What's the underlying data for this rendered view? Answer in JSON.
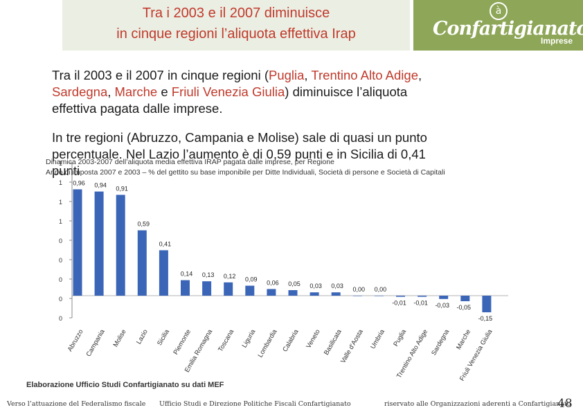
{
  "header": {
    "title_line1": "Tra i 2003 e il 2007 diminuisce",
    "title_line2": "in cinque regioni l’aliquota effettiva Irap",
    "logo_mark": "à",
    "logo_name": "Confartigianato",
    "logo_sub": "Imprese"
  },
  "body": {
    "p1_part1": "Tra il 2003 e il 2007 in cinque regioni (",
    "p1_r1": "Puglia",
    "p1_sep1": ", ",
    "p1_r2": "Trentino Alto Adige",
    "p1_sep2": ",",
    "p1_r3": "Sardegna",
    "p1_sep3": ", ",
    "p1_r4": "Marche",
    "p1_sep4": " e ",
    "p1_r5": "Friuli Venezia Giulia",
    "p1_part2": ") diminuisce l’aliquota",
    "p1_line3": "effettiva pagata dalle imprese.",
    "p2_line1": "In tre regioni (Abruzzo, Campania e Molise) sale di quasi un punto",
    "p2_line2": "percentuale. Nel Lazio l’aumento è di 0,59 punti e in Sicilia di 0,41",
    "p2_line3": "punti"
  },
  "chart_titles": {
    "title": "Dinamica 2003-2007 dell’aliquota media effettiva IRAP pagata dalle imprese, per Regione",
    "subtitle": "Anno di imposta 2007 e 2003 – % del gettito su base imponibile per Ditte Individuali, Società di persone e Società di Capitali"
  },
  "chart_data": {
    "type": "bar",
    "title": "Dinamica 2003-2007 dell’aliquota media effettiva IRAP pagata dalle imprese, per Regione",
    "subtitle": "Anno di imposta 2007 e 2003 – % del gettito su base imponibile per Ditte Individuali, Società di persone e Società di Capitali",
    "categories": [
      "Abruzzo",
      "Campania",
      "Molise",
      "Lazio",
      "Sicilia",
      "Piemonte",
      "Emilia Romagna",
      "Toscana",
      "Liguria",
      "Lombardia",
      "Calabria",
      "Veneto",
      "Basilicata",
      "Valle d'Aosta",
      "Umbria",
      "Puglia",
      "Trentino Alto Adige",
      "Sardegna",
      "Marche",
      "Friuli Venezia Giulia"
    ],
    "values": [
      0.96,
      0.94,
      0.91,
      0.59,
      0.41,
      0.14,
      0.13,
      0.12,
      0.09,
      0.06,
      0.05,
      0.03,
      0.03,
      0.0,
      0.0,
      -0.01,
      -0.01,
      -0.03,
      -0.05,
      -0.15
    ],
    "data_labels": [
      "0,96",
      "0,94",
      "0,91",
      "0,59",
      "0,41",
      "0,14",
      "0,13",
      "0,12",
      "0,09",
      "0,06",
      "0,05",
      "0,03",
      "0,03",
      "0,00",
      "0,00",
      "-0,01",
      "-0,01",
      "-0,03",
      "-0,05",
      "-0,15"
    ],
    "y_tick_labels": [
      "1",
      "1",
      "1",
      "1",
      "0",
      "0",
      "0",
      "0",
      "0"
    ],
    "ylim": [
      -0.2,
      1.2
    ],
    "color": "#3b66b8",
    "grid": false,
    "legend": "none"
  },
  "footer": {
    "source": "Elaborazione Ufficio Studi Confartigianato su dati MEF",
    "left": "Verso l’attuazione del Federalismo fiscale",
    "center": "Ufficio Studi e Direzione Politiche Fiscali Confartigianato",
    "right": "riservato alle Organizzazioni aderenti a Confartigianato",
    "page": "48"
  }
}
